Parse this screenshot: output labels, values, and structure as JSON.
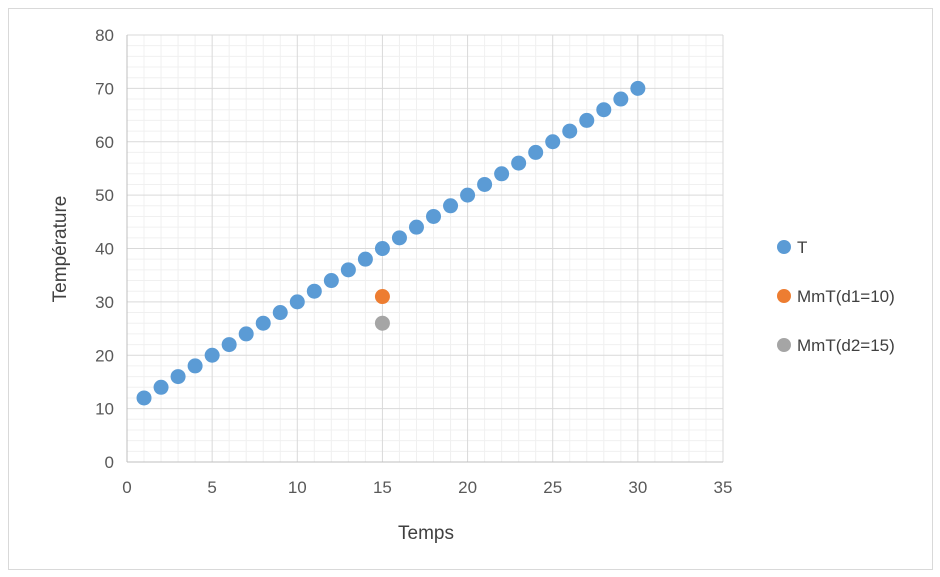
{
  "chart_data": {
    "type": "scatter",
    "title": "",
    "xlabel": "Temps",
    "ylabel": "Température",
    "xlim": [
      0,
      35
    ],
    "ylim": [
      0,
      80
    ],
    "x_ticks": [
      0,
      5,
      10,
      15,
      20,
      25,
      30,
      35
    ],
    "y_ticks": [
      0,
      10,
      20,
      30,
      40,
      50,
      60,
      70,
      80
    ],
    "grid": true,
    "minor_grid": true,
    "legend_position": "right",
    "series": [
      {
        "name": "T",
        "color": "#5b9bd5",
        "points": [
          [
            1,
            12
          ],
          [
            2,
            14
          ],
          [
            3,
            16
          ],
          [
            4,
            18
          ],
          [
            5,
            20
          ],
          [
            6,
            22
          ],
          [
            7,
            24
          ],
          [
            8,
            26
          ],
          [
            9,
            28
          ],
          [
            10,
            30
          ],
          [
            11,
            32
          ],
          [
            12,
            34
          ],
          [
            13,
            36
          ],
          [
            14,
            38
          ],
          [
            15,
            40
          ],
          [
            16,
            42
          ],
          [
            17,
            44
          ],
          [
            18,
            46
          ],
          [
            19,
            48
          ],
          [
            20,
            50
          ],
          [
            21,
            52
          ],
          [
            22,
            54
          ],
          [
            23,
            56
          ],
          [
            24,
            58
          ],
          [
            25,
            60
          ],
          [
            26,
            62
          ],
          [
            27,
            64
          ],
          [
            28,
            66
          ],
          [
            29,
            68
          ],
          [
            30,
            70
          ]
        ]
      },
      {
        "name": "MmT(d1=10)",
        "color": "#ed7d31",
        "points": [
          [
            15,
            31
          ]
        ]
      },
      {
        "name": "MmT(d2=15)",
        "color": "#a5a5a5",
        "points": [
          [
            15,
            26
          ]
        ]
      }
    ]
  }
}
